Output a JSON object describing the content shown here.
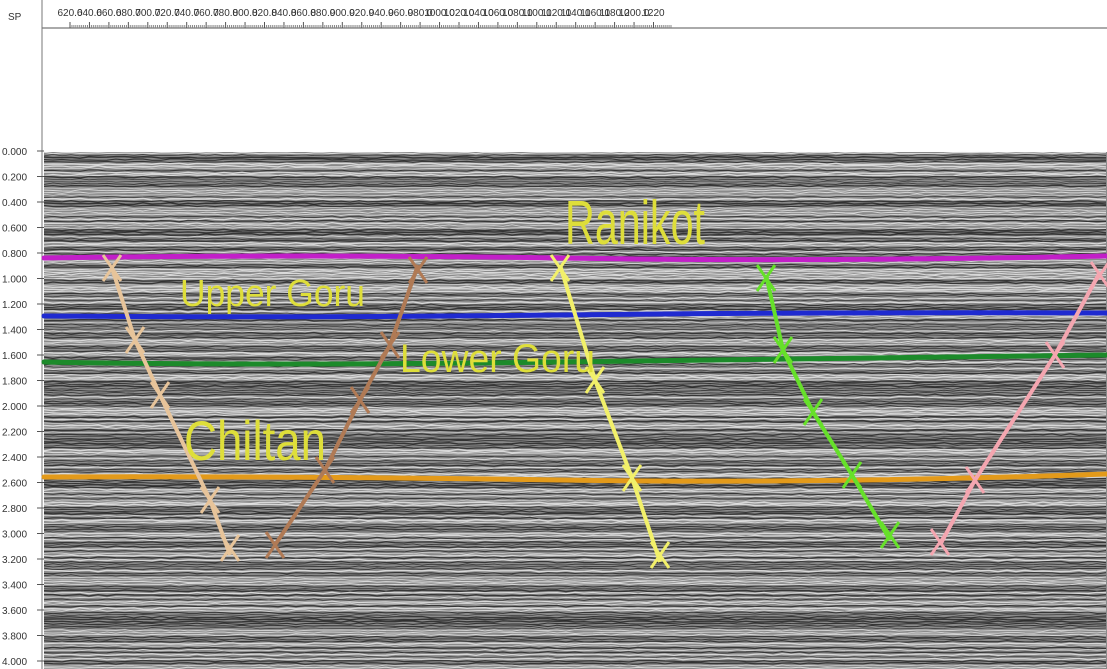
{
  "sp_axis": {
    "label": "SP",
    "ticks": [
      "620.0",
      "640.0",
      "660.0",
      "680.0",
      "700.0",
      "720.0",
      "740.0",
      "760.0",
      "780.0",
      "800.0",
      "820.0",
      "840.0",
      "860.0",
      "880.0",
      "900.0",
      "920.0",
      "940.0",
      "960.0",
      "980.0",
      "1000.0",
      "1020.0",
      "1040.0",
      "1060.0",
      "1080.0",
      "1100.0",
      "1120.0",
      "1140.0",
      "1160.0",
      "1180.0",
      "1200.0",
      "1220"
    ]
  },
  "time_axis": {
    "ticks": [
      "0.000",
      "0.200",
      "0.400",
      "0.600",
      "0.800",
      "1.000",
      "1.200",
      "1.400",
      "1.600",
      "1.800",
      "2.000",
      "2.200",
      "2.400",
      "2.600",
      "2.800",
      "3.000",
      "3.200",
      "3.400",
      "3.600",
      "3.800",
      "4.000"
    ]
  },
  "horizon_labels": {
    "ranikot": "Ranikot",
    "upper_goru": "Upper Goru",
    "lower_goru": "Lower Goru",
    "chiltan": "Chiltan"
  }
}
